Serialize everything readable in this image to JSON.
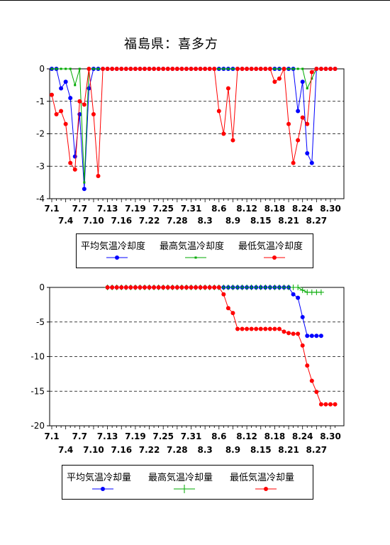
{
  "title": "福島県：喜多方",
  "chart_data": [
    {
      "type": "line",
      "ylim": [
        -4,
        0
      ],
      "yticks": [
        "0",
        "-1",
        "-2",
        "-3",
        "-4"
      ],
      "grid": "horizontal dashed",
      "xticks_top": [
        "7.1",
        "7.7",
        "7.13",
        "7.19",
        "7.25",
        "7.31",
        "8.6",
        "8.12",
        "8.18",
        "8.24",
        "8.30"
      ],
      "xticks_bottom": [
        "7.4",
        "7.10",
        "7.16",
        "7.22",
        "7.28",
        "8.3",
        "8.9",
        "8.15",
        "8.21",
        "8.27"
      ],
      "legend": [
        "平均気温冷却度",
        "最高気温冷却度",
        "最低気温冷却度"
      ],
      "series": [
        {
          "name": "平均気温冷却度",
          "color": "#0000ff",
          "marker": "circle",
          "values": [
            0,
            0,
            -0.6,
            -0.4,
            -0.9,
            -2.7,
            -1.4,
            -3.7,
            -0.6,
            0,
            0,
            0,
            0,
            0,
            0,
            0,
            0,
            0,
            0,
            0,
            0,
            0,
            0,
            0,
            0,
            0,
            0,
            0,
            0,
            0,
            0,
            0,
            0,
            0,
            0,
            0,
            0,
            0,
            0,
            0,
            0,
            0,
            0,
            0,
            0,
            0,
            0,
            0,
            0,
            0,
            0,
            0,
            0,
            -1.3,
            -0.4,
            -2.6,
            -2.9,
            0,
            0,
            0,
            0,
            0
          ]
        },
        {
          "name": "最高気温冷却度",
          "color": "#00aa00",
          "marker": "square",
          "values": [
            0,
            0,
            0,
            0,
            0,
            -0.5,
            0,
            -3.5,
            0,
            0,
            0,
            0,
            0,
            0,
            0,
            0,
            0,
            0,
            0,
            0,
            0,
            0,
            0,
            0,
            0,
            0,
            0,
            0,
            0,
            0,
            0,
            0,
            0,
            0,
            0,
            0,
            0,
            0,
            0,
            0,
            0,
            0,
            0,
            0,
            0,
            0,
            0,
            0,
            0,
            0,
            0,
            0,
            0,
            0,
            0,
            -0.6,
            -0.3,
            0,
            0,
            0,
            0,
            0
          ]
        },
        {
          "name": "最低気温冷却度",
          "color": "#ff0000",
          "marker": "circle",
          "values": [
            -0.8,
            -1.4,
            -1.3,
            -1.7,
            -2.9,
            -3.1,
            -1.0,
            -1.1,
            0,
            -1.4,
            -3.3,
            0,
            0,
            0,
            0,
            0,
            0,
            0,
            0,
            0,
            0,
            0,
            0,
            0,
            0,
            0,
            0,
            0,
            0,
            0,
            0,
            0,
            0,
            0,
            0,
            0,
            -1.3,
            -2.0,
            -0.6,
            -2.2,
            0,
            0,
            0,
            0,
            0,
            0,
            0,
            0,
            -0.4,
            -0.3,
            0,
            -1.7,
            -2.9,
            -2.2,
            -1.5,
            -1.7,
            -0.1,
            0,
            0,
            0,
            0,
            0
          ]
        }
      ]
    },
    {
      "type": "line",
      "ylim": [
        -20,
        0
      ],
      "yticks": [
        "0",
        "-5",
        "-10",
        "-15",
        "-20"
      ],
      "grid": "horizontal dashed",
      "xticks_top": [
        "7.1",
        "7.7",
        "7.13",
        "7.19",
        "7.25",
        "7.31",
        "8.6",
        "8.12",
        "8.18",
        "8.24",
        "8.30"
      ],
      "xticks_bottom": [
        "7.4",
        "7.10",
        "7.16",
        "7.22",
        "7.28",
        "8.3",
        "8.9",
        "8.15",
        "8.21",
        "8.27"
      ],
      "legend": [
        "平均気温冷却量",
        "最高気温冷却量",
        "最低気温冷却量"
      ],
      "series": [
        {
          "name": "平均気温冷却量",
          "color": "#0000ff",
          "marker": "circle",
          "start": 12,
          "values": [
            0,
            0,
            0,
            0,
            0,
            0,
            0,
            0,
            0,
            0,
            0,
            0,
            0,
            0,
            0,
            0,
            0,
            0,
            0,
            0,
            0,
            0,
            0,
            0,
            0,
            0,
            0,
            0,
            0,
            0,
            0,
            0,
            0,
            0,
            0,
            0,
            0,
            0,
            0,
            0,
            -1.0,
            -1.5,
            -4.3,
            -7.0,
            -7.0,
            -7.0,
            -7.0
          ]
        },
        {
          "name": "最高気温冷却量",
          "color": "#00aa00",
          "marker": "plus",
          "start": 12,
          "values": [
            0,
            0,
            0,
            0,
            0,
            0,
            0,
            0,
            0,
            0,
            0,
            0,
            0,
            0,
            0,
            0,
            0,
            0,
            0,
            0,
            0,
            0,
            0,
            0,
            0,
            0,
            0,
            0,
            0,
            0,
            0,
            0,
            0,
            0,
            0,
            0,
            0,
            0,
            0,
            0,
            0,
            0,
            -0.4,
            -0.7,
            -0.7,
            -0.7,
            -0.7
          ]
        },
        {
          "name": "最低気温冷却量",
          "color": "#ff0000",
          "marker": "circle",
          "start": 12,
          "values": [
            0,
            0,
            0,
            0,
            0,
            0,
            0,
            0,
            0,
            0,
            0,
            0,
            0,
            0,
            0,
            0,
            0,
            0,
            0,
            0,
            0,
            0,
            0,
            0,
            0,
            -1.0,
            -3.0,
            -3.7,
            -6.0,
            -6.0,
            -6.0,
            -6.0,
            -6.0,
            -6.0,
            -6.0,
            -6.0,
            -6.0,
            -6.0,
            -6.4,
            -6.6,
            -6.7,
            -6.7,
            -8.4,
            -11.3,
            -13.5,
            -15.1,
            -16.9,
            -16.9,
            -16.9,
            -16.9
          ]
        }
      ]
    }
  ]
}
